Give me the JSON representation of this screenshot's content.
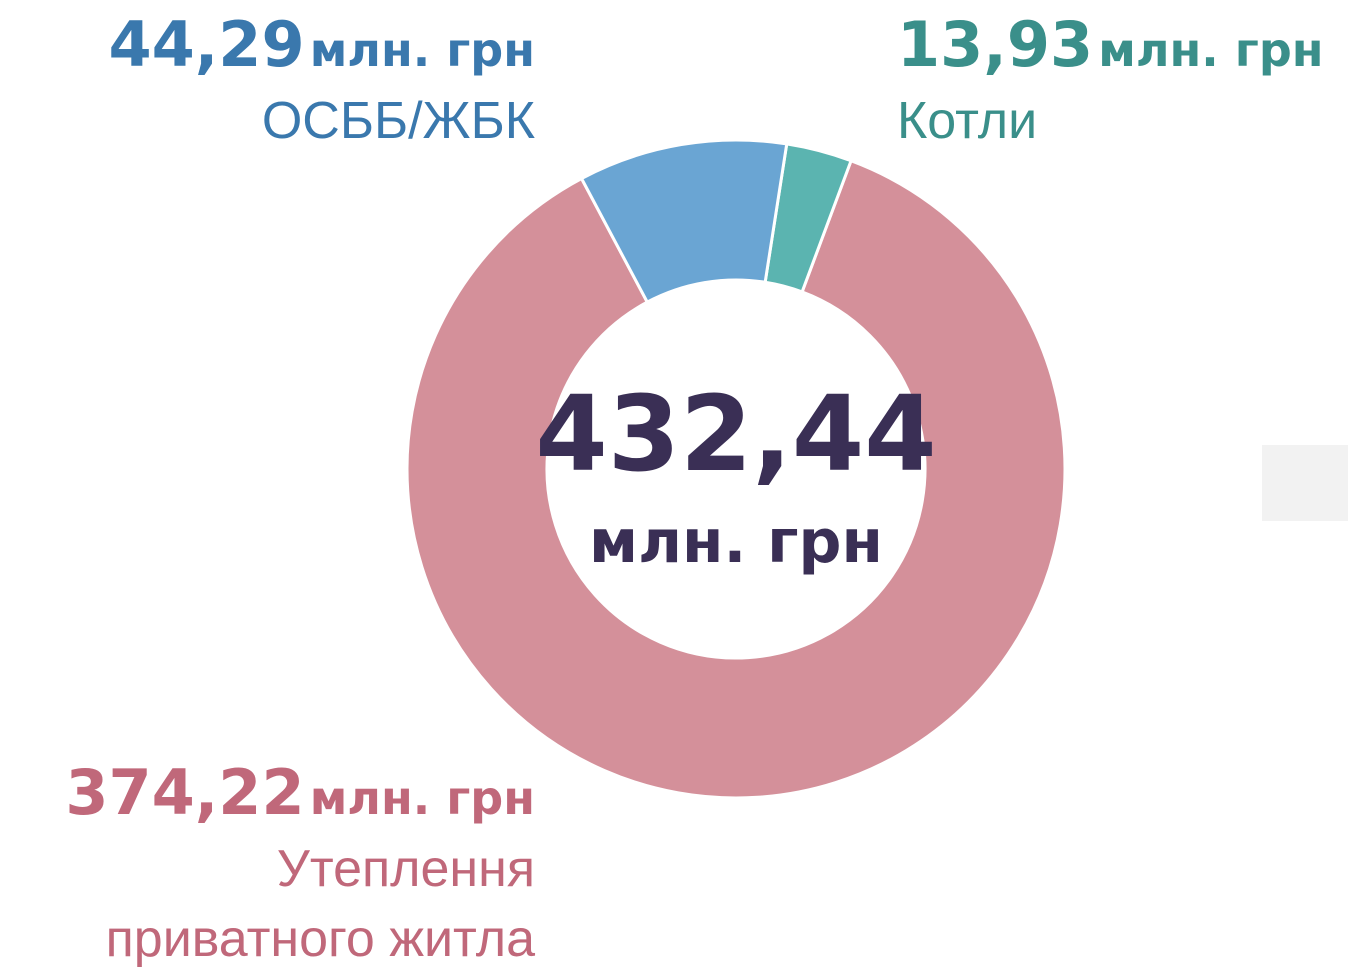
{
  "chart_data": {
    "type": "donut",
    "categories": [
      "ОСББ/ЖБК",
      "Котли",
      "Утеплення приватного житла"
    ],
    "values": [
      44.29,
      13.93,
      374.22
    ],
    "value_labels": [
      "44,29",
      "13,93",
      "374,22"
    ],
    "unit": "млн. грн",
    "colors": [
      "#6aa5d3",
      "#5bb4b0",
      "#d4909a"
    ],
    "label_colors": [
      "#3a78ad",
      "#3a8f8a",
      "#c0687a"
    ],
    "center_label": "432,44"
  }
}
